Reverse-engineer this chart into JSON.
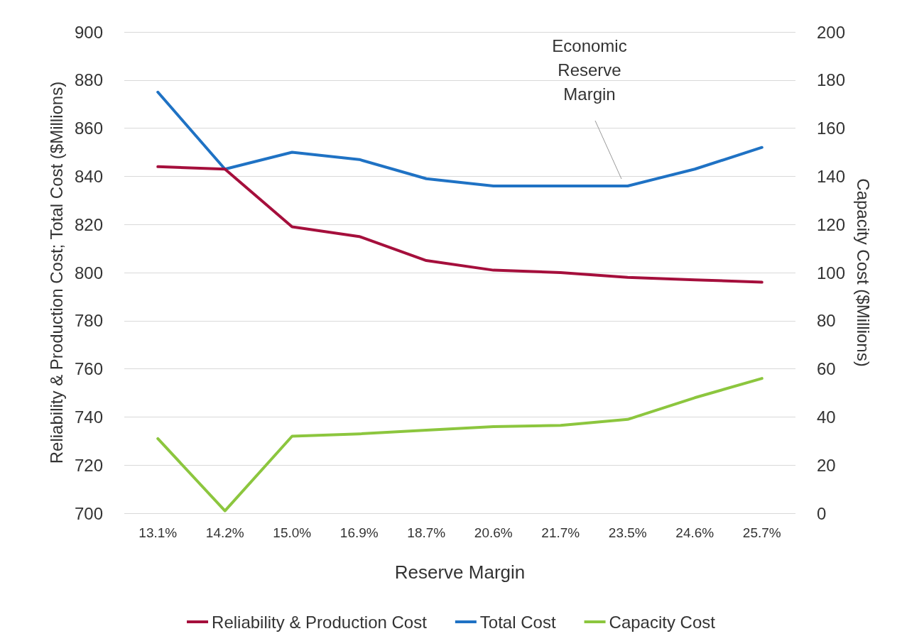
{
  "chart_data": {
    "type": "line",
    "xlabel": "Reserve Margin",
    "ylabel": "Reliability & Production Cost; Total Cost ($Millions)",
    "y2label": "Capacity Cost ($Millions)",
    "categories": [
      "13.1%",
      "14.2%",
      "15.0%",
      "16.9%",
      "18.7%",
      "20.6%",
      "21.7%",
      "23.5%",
      "24.6%",
      "25.7%"
    ],
    "series": [
      {
        "name": "Reliability & Production Cost",
        "color": "#a50f3c",
        "values": [
          844,
          843,
          819,
          815,
          805,
          801,
          800,
          798,
          797,
          796
        ]
      },
      {
        "name": "Total Cost",
        "color": "#1f72c4",
        "values": [
          875,
          843,
          850,
          847,
          839,
          836,
          836,
          836,
          843,
          852
        ]
      },
      {
        "name": "Capacity Cost",
        "color": "#8cc63e",
        "axis": "y2",
        "values": [
          31,
          1,
          32,
          33,
          34.5,
          36,
          36.5,
          39,
          48,
          56
        ]
      }
    ],
    "ylim": [
      700,
      900
    ],
    "yticks": [
      700,
      720,
      740,
      760,
      780,
      800,
      820,
      840,
      860,
      880,
      900
    ],
    "y2lim": [
      0,
      200
    ],
    "y2ticks": [
      0,
      20,
      40,
      60,
      80,
      100,
      120,
      140,
      160,
      180,
      200
    ],
    "annotations": [
      "Economic Reserve Margin"
    ],
    "grid": "y",
    "legend": "bottom",
    "marker": "none",
    "line_style": "solid"
  }
}
